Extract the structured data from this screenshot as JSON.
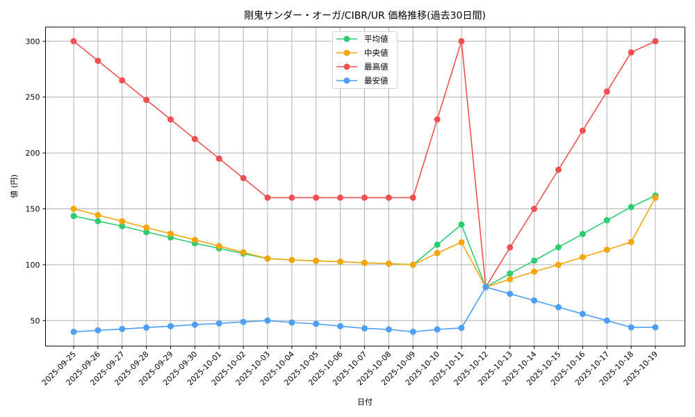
{
  "chart_data": {
    "type": "line",
    "title": "剛鬼サンダー・オーガ/CIBR/UR 価格推移(過去30日間)",
    "xlabel": "日付",
    "ylabel": "値 (円)",
    "ylim": [
      27,
      313
    ],
    "yticks": [
      50,
      100,
      150,
      200,
      250,
      300
    ],
    "grid": true,
    "legend_position": "upper center",
    "categories": [
      "2025-09-25",
      "2025-09-26",
      "2025-09-27",
      "2025-09-28",
      "2025-09-29",
      "2025-09-30",
      "2025-10-01",
      "2025-10-02",
      "2025-10-03",
      "2025-10-04",
      "2025-10-05",
      "2025-10-06",
      "2025-10-07",
      "2025-10-08",
      "2025-10-09",
      "2025-10-10",
      "2025-10-11",
      "2025-10-12",
      "2025-10-13",
      "2025-10-14",
      "2025-10-15",
      "2025-10-16",
      "2025-10-17",
      "2025-10-18",
      "2025-10-19"
    ],
    "series": [
      {
        "name": "平均値",
        "color": "#2ecc71",
        "values": [
          143.6,
          139,
          134.5,
          129.2,
          124.4,
          119.2,
          114.7,
          110,
          105.5,
          104.2,
          103.5,
          102.7,
          101.7,
          101,
          100,
          117.9,
          135.9,
          80,
          92.1,
          103.7,
          115.7,
          127.5,
          139.8,
          151.6,
          161.9
        ]
      },
      {
        "name": "中央値",
        "color": "#f5a60b",
        "values": [
          150,
          144.4,
          138.9,
          133.3,
          127.8,
          122.2,
          116.7,
          111.1,
          105.6,
          104.2,
          103.5,
          102.7,
          101.7,
          101,
          100,
          110.4,
          120.1,
          80,
          87,
          93.8,
          100,
          106.8,
          113.4,
          120.3,
          160
        ]
      },
      {
        "name": "最高値",
        "color": "#f05050",
        "values": [
          300,
          282.5,
          265,
          247.5,
          230,
          212.5,
          195,
          177.5,
          160,
          160,
          160,
          160,
          160,
          160,
          160,
          230,
          300,
          80,
          115.5,
          150,
          185,
          220,
          255,
          290,
          300
        ]
      },
      {
        "name": "最安値",
        "color": "#4d9ef5",
        "values": [
          40,
          41.3,
          42.5,
          43.8,
          45,
          46.3,
          47.5,
          48.8,
          50,
          48.3,
          47.1,
          45,
          43.1,
          42.1,
          40,
          42.1,
          43.5,
          80,
          74,
          68,
          62,
          56,
          50,
          44,
          44
        ]
      }
    ]
  }
}
